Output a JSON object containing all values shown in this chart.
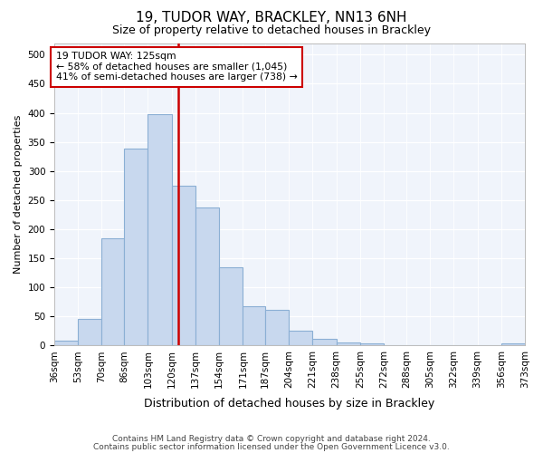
{
  "title1": "19, TUDOR WAY, BRACKLEY, NN13 6NH",
  "title2": "Size of property relative to detached houses in Brackley",
  "xlabel": "Distribution of detached houses by size in Brackley",
  "ylabel": "Number of detached properties",
  "footnote1": "Contains HM Land Registry data © Crown copyright and database right 2024.",
  "footnote2": "Contains public sector information licensed under the Open Government Licence v3.0.",
  "annotation_line1": "19 TUDOR WAY: 125sqm",
  "annotation_line2": "← 58% of detached houses are smaller (1,045)",
  "annotation_line3": "41% of semi-detached houses are larger (738) →",
  "bar_bins": [
    36,
    53,
    70,
    86,
    103,
    120,
    137,
    154,
    171,
    187,
    204,
    221,
    238,
    255,
    272,
    288,
    305,
    322,
    339,
    356,
    373
  ],
  "bar_heights": [
    8,
    46,
    184,
    338,
    398,
    275,
    238,
    135,
    67,
    62,
    25,
    11,
    5,
    3,
    1,
    1,
    1,
    0,
    0,
    3
  ],
  "bar_color": "#c8d8ee",
  "bar_edge_color": "#8bafd4",
  "vline_color": "#cc0000",
  "vline_x": 125,
  "ylim": [
    0,
    520
  ],
  "yticks": [
    0,
    50,
    100,
    150,
    200,
    250,
    300,
    350,
    400,
    450,
    500
  ],
  "xtick_labels": [
    "36sqm",
    "53sqm",
    "70sqm",
    "86sqm",
    "103sqm",
    "120sqm",
    "137sqm",
    "154sqm",
    "171sqm",
    "187sqm",
    "204sqm",
    "221sqm",
    "238sqm",
    "255sqm",
    "272sqm",
    "288sqm",
    "305sqm",
    "322sqm",
    "339sqm",
    "356sqm",
    "373sqm"
  ],
  "annotation_box_facecolor": "#ffffff",
  "annotation_box_edge": "#cc0000",
  "fig_facecolor": "#ffffff",
  "plot_facecolor": "#f0f4fb",
  "grid_color": "#ffffff",
  "title1_fontsize": 11,
  "title2_fontsize": 9,
  "ylabel_fontsize": 8,
  "xlabel_fontsize": 9,
  "tick_fontsize": 7.5,
  "footnote_fontsize": 6.5
}
